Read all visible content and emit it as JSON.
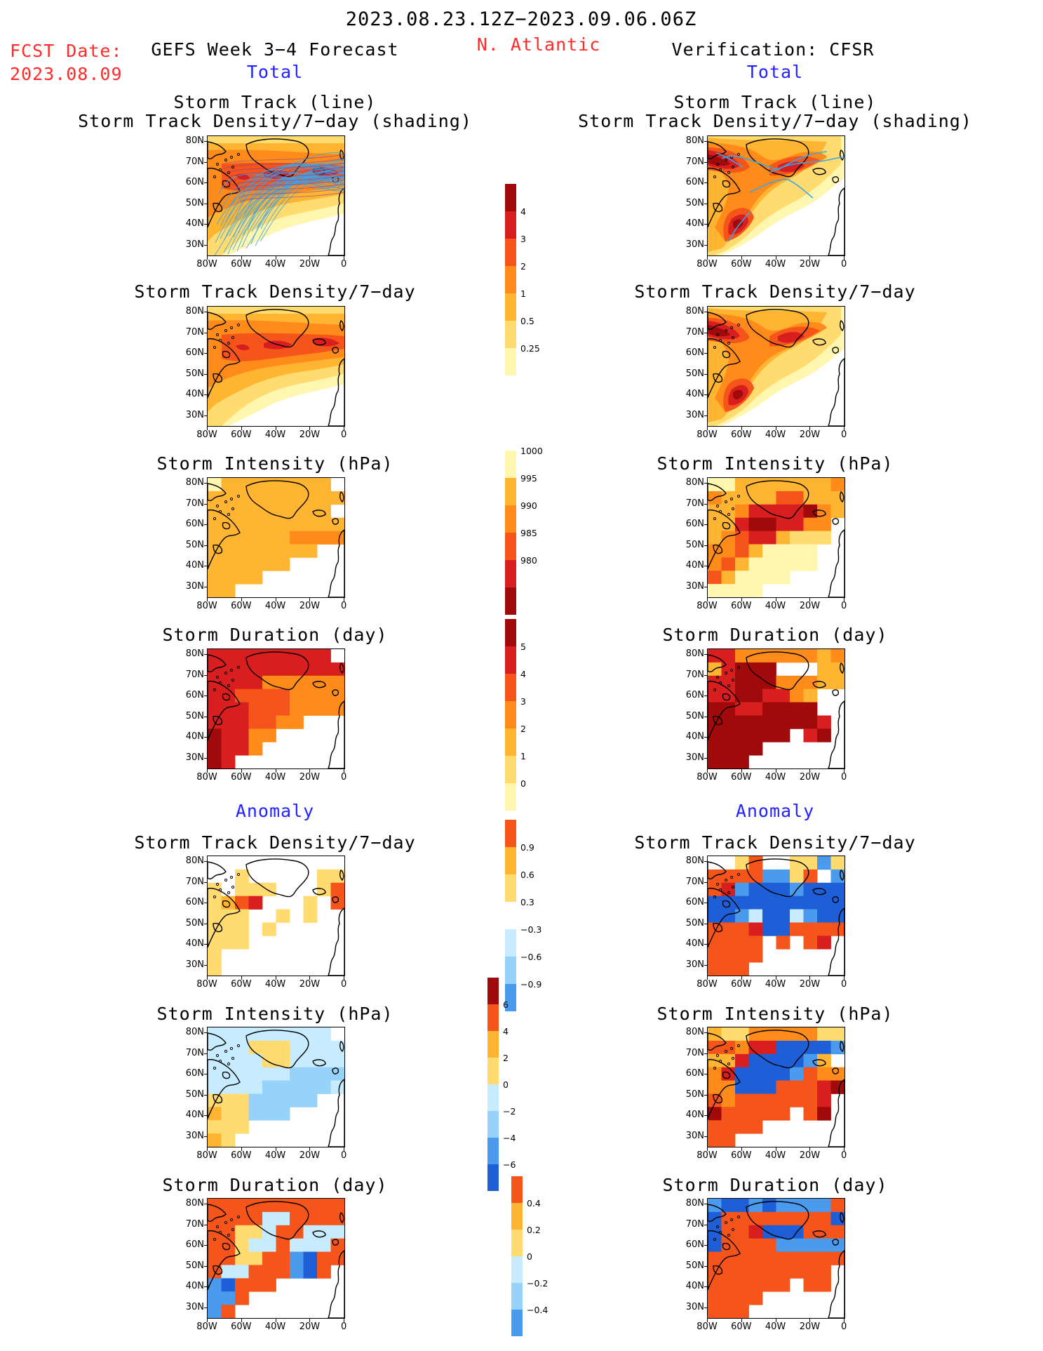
{
  "header": {
    "date_range": "2023.08.23.12Z−2023.09.06.06Z",
    "fcst_label": "FCST Date:",
    "fcst_date": "2023.08.09",
    "left_title": "GEFS Week 3−4 Forecast",
    "region": "N. Atlantic",
    "right_title": "Verification: CFSR",
    "left_section": "Total",
    "right_section": "Total",
    "left_anomaly": "Anomaly",
    "right_anomaly": "Anomaly"
  },
  "panels": {
    "track_line_1": "Storm Track (line)",
    "track_line_2": "Storm Track Density/7−day (shading)",
    "density": "Storm Track Density/7−day",
    "intensity": "Storm Intensity (hPa)",
    "duration": "Storm Duration (day)"
  },
  "axes": {
    "lat_ticks": [
      "80N",
      "70N",
      "60N",
      "50N",
      "40N",
      "30N"
    ],
    "lon_ticks": [
      "80W",
      "60W",
      "40W",
      "20W",
      "0"
    ]
  },
  "colorbars": {
    "density_total": [
      "4",
      "3",
      "2",
      "1",
      "0.5",
      "0.25"
    ],
    "intensity_total": [
      "1000",
      "995",
      "990",
      "985",
      "980"
    ],
    "duration_total": [
      "5",
      "4",
      "3",
      "2",
      "1",
      "0"
    ],
    "density_anom": [
      "0.9",
      "0.6",
      "0.3",
      "−0.3",
      "−0.6",
      "−0.9"
    ],
    "intensity_anom": [
      "6",
      "4",
      "2",
      "0",
      "−2",
      "−4",
      "−6"
    ],
    "duration_anom": [
      "0.4",
      "0.2",
      "0",
      "−0.2",
      "−0.4"
    ]
  },
  "colors": {
    "pale_yellow": "#fff6b0",
    "yellow": "#ffdb70",
    "light_orange": "#ffb432",
    "orange": "#ff8c1a",
    "red_orange": "#f5541a",
    "red": "#d81e1e",
    "dark_red": "#a00a0a",
    "light_blue": "#c8ecff",
    "mid_blue": "#96d2fa",
    "blue": "#4a9aee",
    "dark_blue": "#1e5fd8",
    "track_line": "#3aa6e8",
    "title_red": "#ff2a2a",
    "title_blue": "#2222ff"
  }
}
